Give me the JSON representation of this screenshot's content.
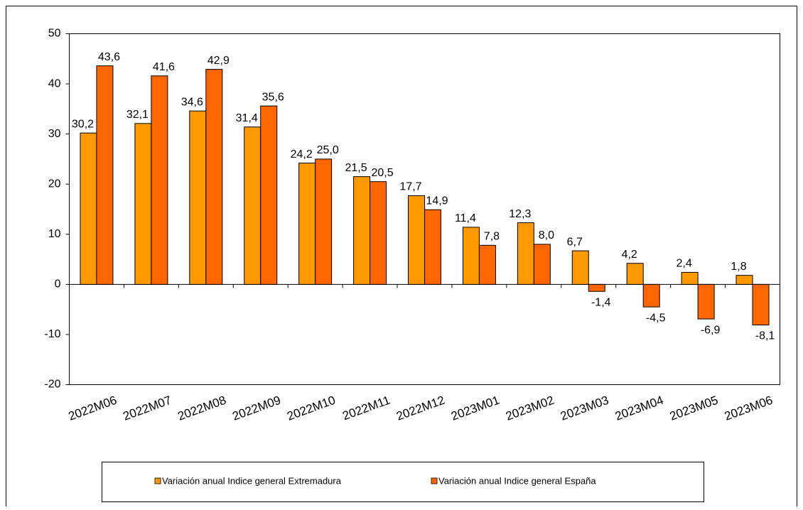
{
  "chart_data": {
    "type": "bar",
    "categories": [
      "2022M06",
      "2022M07",
      "2022M08",
      "2022M09",
      "2022M10",
      "2022M11",
      "2022M12",
      "2023M01",
      "2023M02",
      "2023M03",
      "2023M04",
      "2023M05",
      "2023M06"
    ],
    "series": [
      {
        "name": "Variación anual Indice general Extremadura",
        "color": "#FF9900",
        "values": [
          30.2,
          32.1,
          34.6,
          31.4,
          24.2,
          21.5,
          17.7,
          11.4,
          12.3,
          6.7,
          4.2,
          2.4,
          1.8
        ],
        "value_labels": [
          "30,2",
          "32,1",
          "34,6",
          "31,4",
          "24,2",
          "21,5",
          "17,7",
          "11,4",
          "12,3",
          "6,7",
          "4,2",
          "2,4",
          "1,8"
        ]
      },
      {
        "name": "Variación anual Indice general España",
        "color": "#FF6600",
        "values": [
          43.6,
          41.6,
          42.9,
          35.6,
          25.0,
          20.5,
          14.9,
          7.8,
          8.0,
          -1.4,
          -4.5,
          -6.9,
          -8.1
        ],
        "value_labels": [
          "43,6",
          "41,6",
          "42,9",
          "35,6",
          "25,0",
          "20,5",
          "14,9",
          "7,8",
          "8,0",
          "-1,4",
          "-4,5",
          "-6,9",
          "-8,1"
        ]
      }
    ],
    "ylim": [
      -20,
      50
    ],
    "yticks": [
      -20,
      -10,
      0,
      10,
      20,
      30,
      40,
      50
    ],
    "grid": false,
    "legend": "bottom"
  }
}
